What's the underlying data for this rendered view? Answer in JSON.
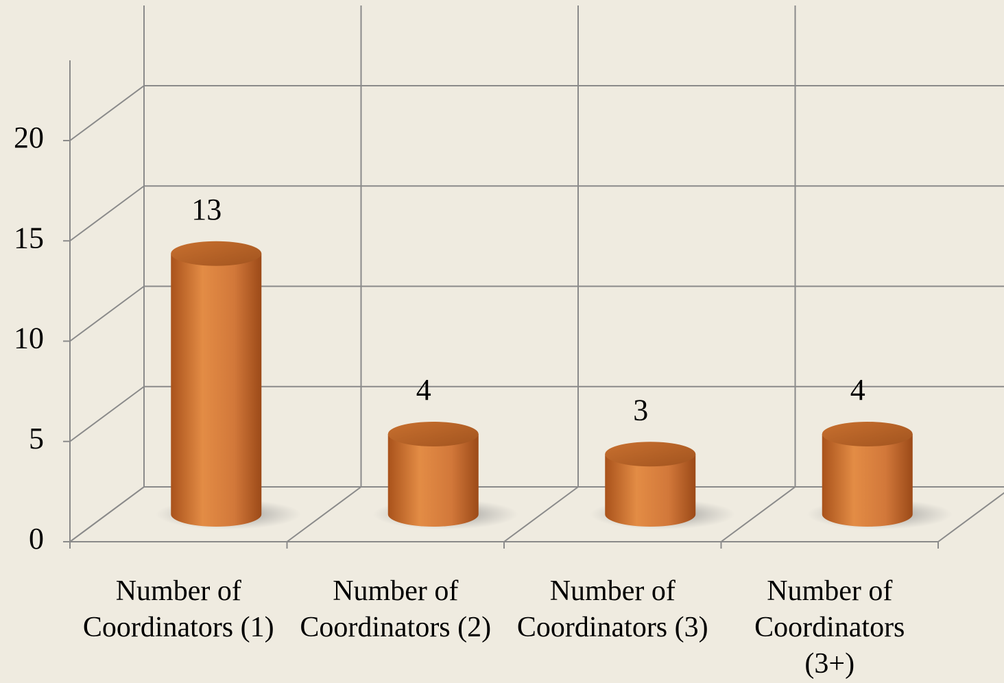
{
  "chart_data": {
    "type": "bar",
    "categories": [
      "Number of Coordinators (1)",
      "Number of Coordinators (2)",
      "Number of Coordinators (3)",
      "Number of Coordinators (3+)"
    ],
    "values": [
      13,
      4,
      3,
      4
    ],
    "color": "#d9813c",
    "ylim": [
      0,
      24
    ],
    "yticks": [
      0,
      5,
      10,
      15,
      20
    ],
    "grid": true
  }
}
